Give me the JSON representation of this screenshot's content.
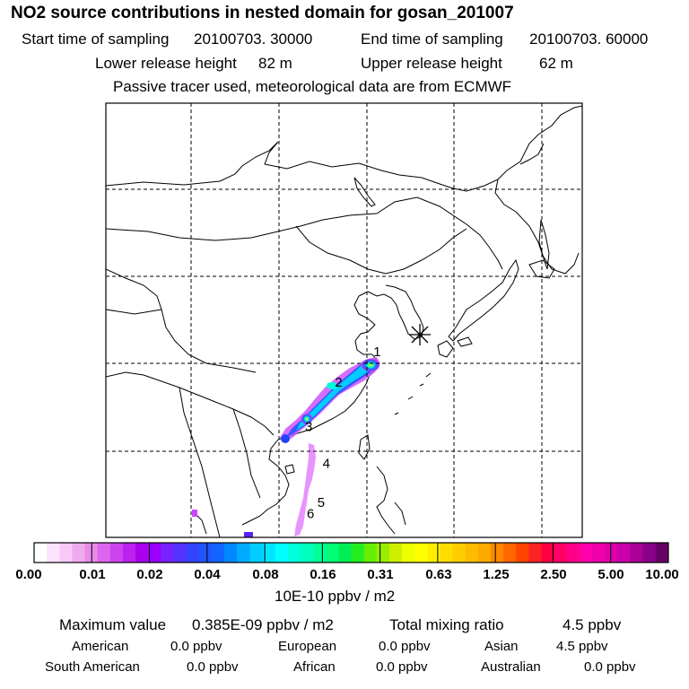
{
  "title": "NO2 source contributions in nested domain for gosan_201007",
  "header": {
    "start_label": "Start time of sampling",
    "start_value": "20100703. 30000",
    "end_label": "End time of sampling",
    "end_value": "20100703. 60000",
    "lower_label": "Lower release height",
    "lower_value": "82 m",
    "upper_label": "Upper release height",
    "upper_value": "62 m",
    "note": "Passive tracer used, meteorological data are from ECMWF"
  },
  "map": {
    "receptor_marker": "asterisk-icon",
    "trajectory_points": [
      {
        "label": "1",
        "lon": 121.2,
        "lat": 30.8
      },
      {
        "label": "2",
        "lon": 116.8,
        "lat": 27.3
      },
      {
        "label": "3",
        "lon": 113.4,
        "lat": 22.2
      },
      {
        "label": "4",
        "lon": 115.4,
        "lat": 18.0
      },
      {
        "label": "5",
        "lon": 114.8,
        "lat": 13.5
      },
      {
        "label": "6",
        "lon": 113.6,
        "lat": 12.2
      }
    ],
    "colors": {
      "land_line": "#000000",
      "grid": "#000000",
      "frame": "#000000"
    }
  },
  "colorbar": {
    "tick_labels": [
      "0.00",
      "0.01",
      "0.02",
      "0.04",
      "0.08",
      "0.16",
      "0.31",
      "0.63",
      "1.25",
      "2.50",
      "5.00",
      "10.00"
    ],
    "colors": [
      "#ffffff",
      "#fde3fd",
      "#f8c8f8",
      "#f0aaf0",
      "#e88ae8",
      "#dd66ee",
      "#cc44ee",
      "#bb22ee",
      "#aa00ee",
      "#9900ff",
      "#7722ff",
      "#5533ff",
      "#3344ff",
      "#2255ff",
      "#1166ff",
      "#0088ff",
      "#00aaff",
      "#00ccff",
      "#00e5ff",
      "#00ffff",
      "#00ffdd",
      "#00ffbb",
      "#00ff99",
      "#00ff77",
      "#00ee55",
      "#22ee22",
      "#66ee00",
      "#99ee00",
      "#ccf000",
      "#eeff00",
      "#ffff00",
      "#ffee00",
      "#ffdd00",
      "#ffcc00",
      "#ffbb00",
      "#ffaa00",
      "#ff8800",
      "#ff6600",
      "#ff4400",
      "#ff2222",
      "#ff0044",
      "#ff0066",
      "#ff0088",
      "#ff00aa",
      "#ee00aa",
      "#dd00aa",
      "#cc00aa",
      "#aa0099",
      "#880088",
      "#660066"
    ],
    "unit_label": "10E-10 ppbv / m2"
  },
  "summary": {
    "max_label": "Maximum value",
    "max_value": "0.385E-09 ppbv / m2",
    "total_label": "Total mixing ratio",
    "total_value": "4.5 ppbv",
    "american_label": "American",
    "american_value": "0.0 ppbv",
    "european_label": "European",
    "european_value": "0.0 ppbv",
    "asian_label": "Asian",
    "asian_value": "4.5 ppbv",
    "south_american_label": "South American",
    "south_american_value": "0.0 ppbv",
    "african_label": "African",
    "african_value": "0.0 ppbv",
    "australian_label": "Australian",
    "australian_value": "0.0 ppbv"
  }
}
